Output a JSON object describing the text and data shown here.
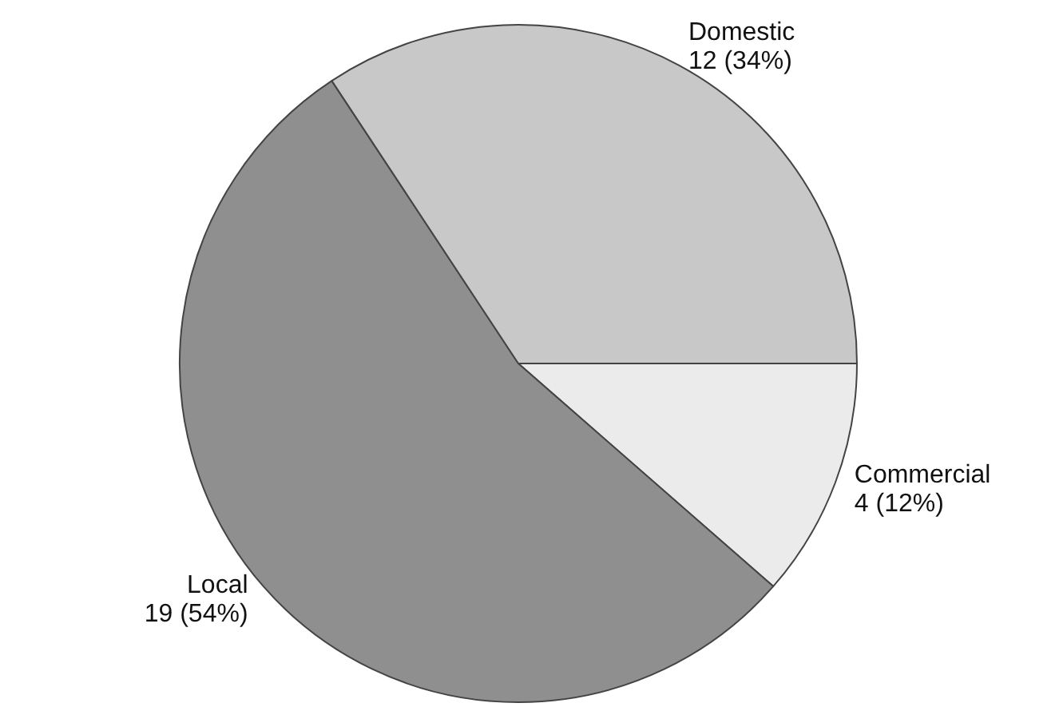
{
  "chart_data": {
    "type": "pie",
    "categories": [
      "Commercial",
      "Local",
      "Domestic"
    ],
    "values": [
      4,
      19,
      12
    ],
    "colors": [
      "#ebebeb",
      "#8f8f8f",
      "#c8c8c8"
    ],
    "value_labels": [
      "4 (12%)",
      "19 (54%)",
      "12 (34%)"
    ],
    "legend": false
  }
}
